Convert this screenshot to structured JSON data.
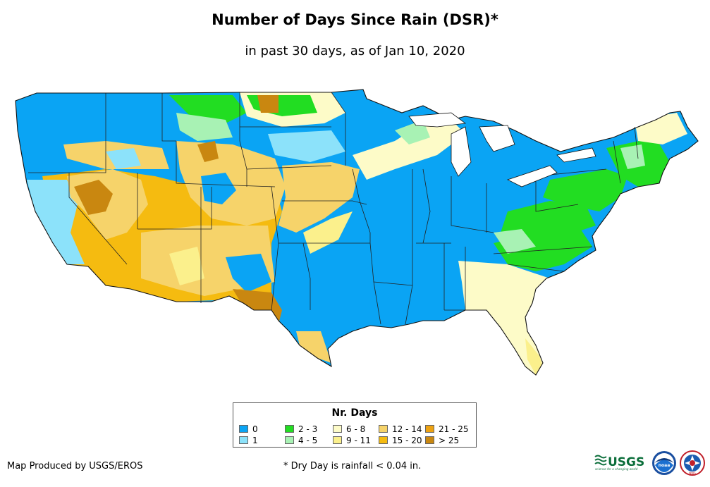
{
  "title": "Number of Days Since Rain (DSR)*",
  "subtitle": "in past 30 days, as of Jan 10, 2020",
  "legend": {
    "title": "Nr. Days",
    "items": [
      {
        "label": "0",
        "color": "#0aa4f4"
      },
      {
        "label": "1",
        "color": "#8ce2fa"
      },
      {
        "label": "2 - 3",
        "color": "#22dd22"
      },
      {
        "label": "4 - 5",
        "color": "#a8f2b4"
      },
      {
        "label": "6 - 8",
        "color": "#fdfbc8"
      },
      {
        "label": "9 - 11",
        "color": "#fbf08c"
      },
      {
        "label": "12 - 14",
        "color": "#f6d36a"
      },
      {
        "label": "15 - 20",
        "color": "#f5bb10"
      },
      {
        "label": "21 - 25",
        "color": "#eda212"
      },
      {
        "label": "> 25",
        "color": "#c98710"
      }
    ]
  },
  "credit": "Map Produced by USGS/EROS",
  "footnote": "* Dry Day is rainfall < 0.04 in.",
  "logos": {
    "usgs": {
      "text": "USGS",
      "tagline": "science for a changing world"
    },
    "noaa": {
      "text": "noaa"
    },
    "nws": {
      "text": "NWS"
    }
  }
}
